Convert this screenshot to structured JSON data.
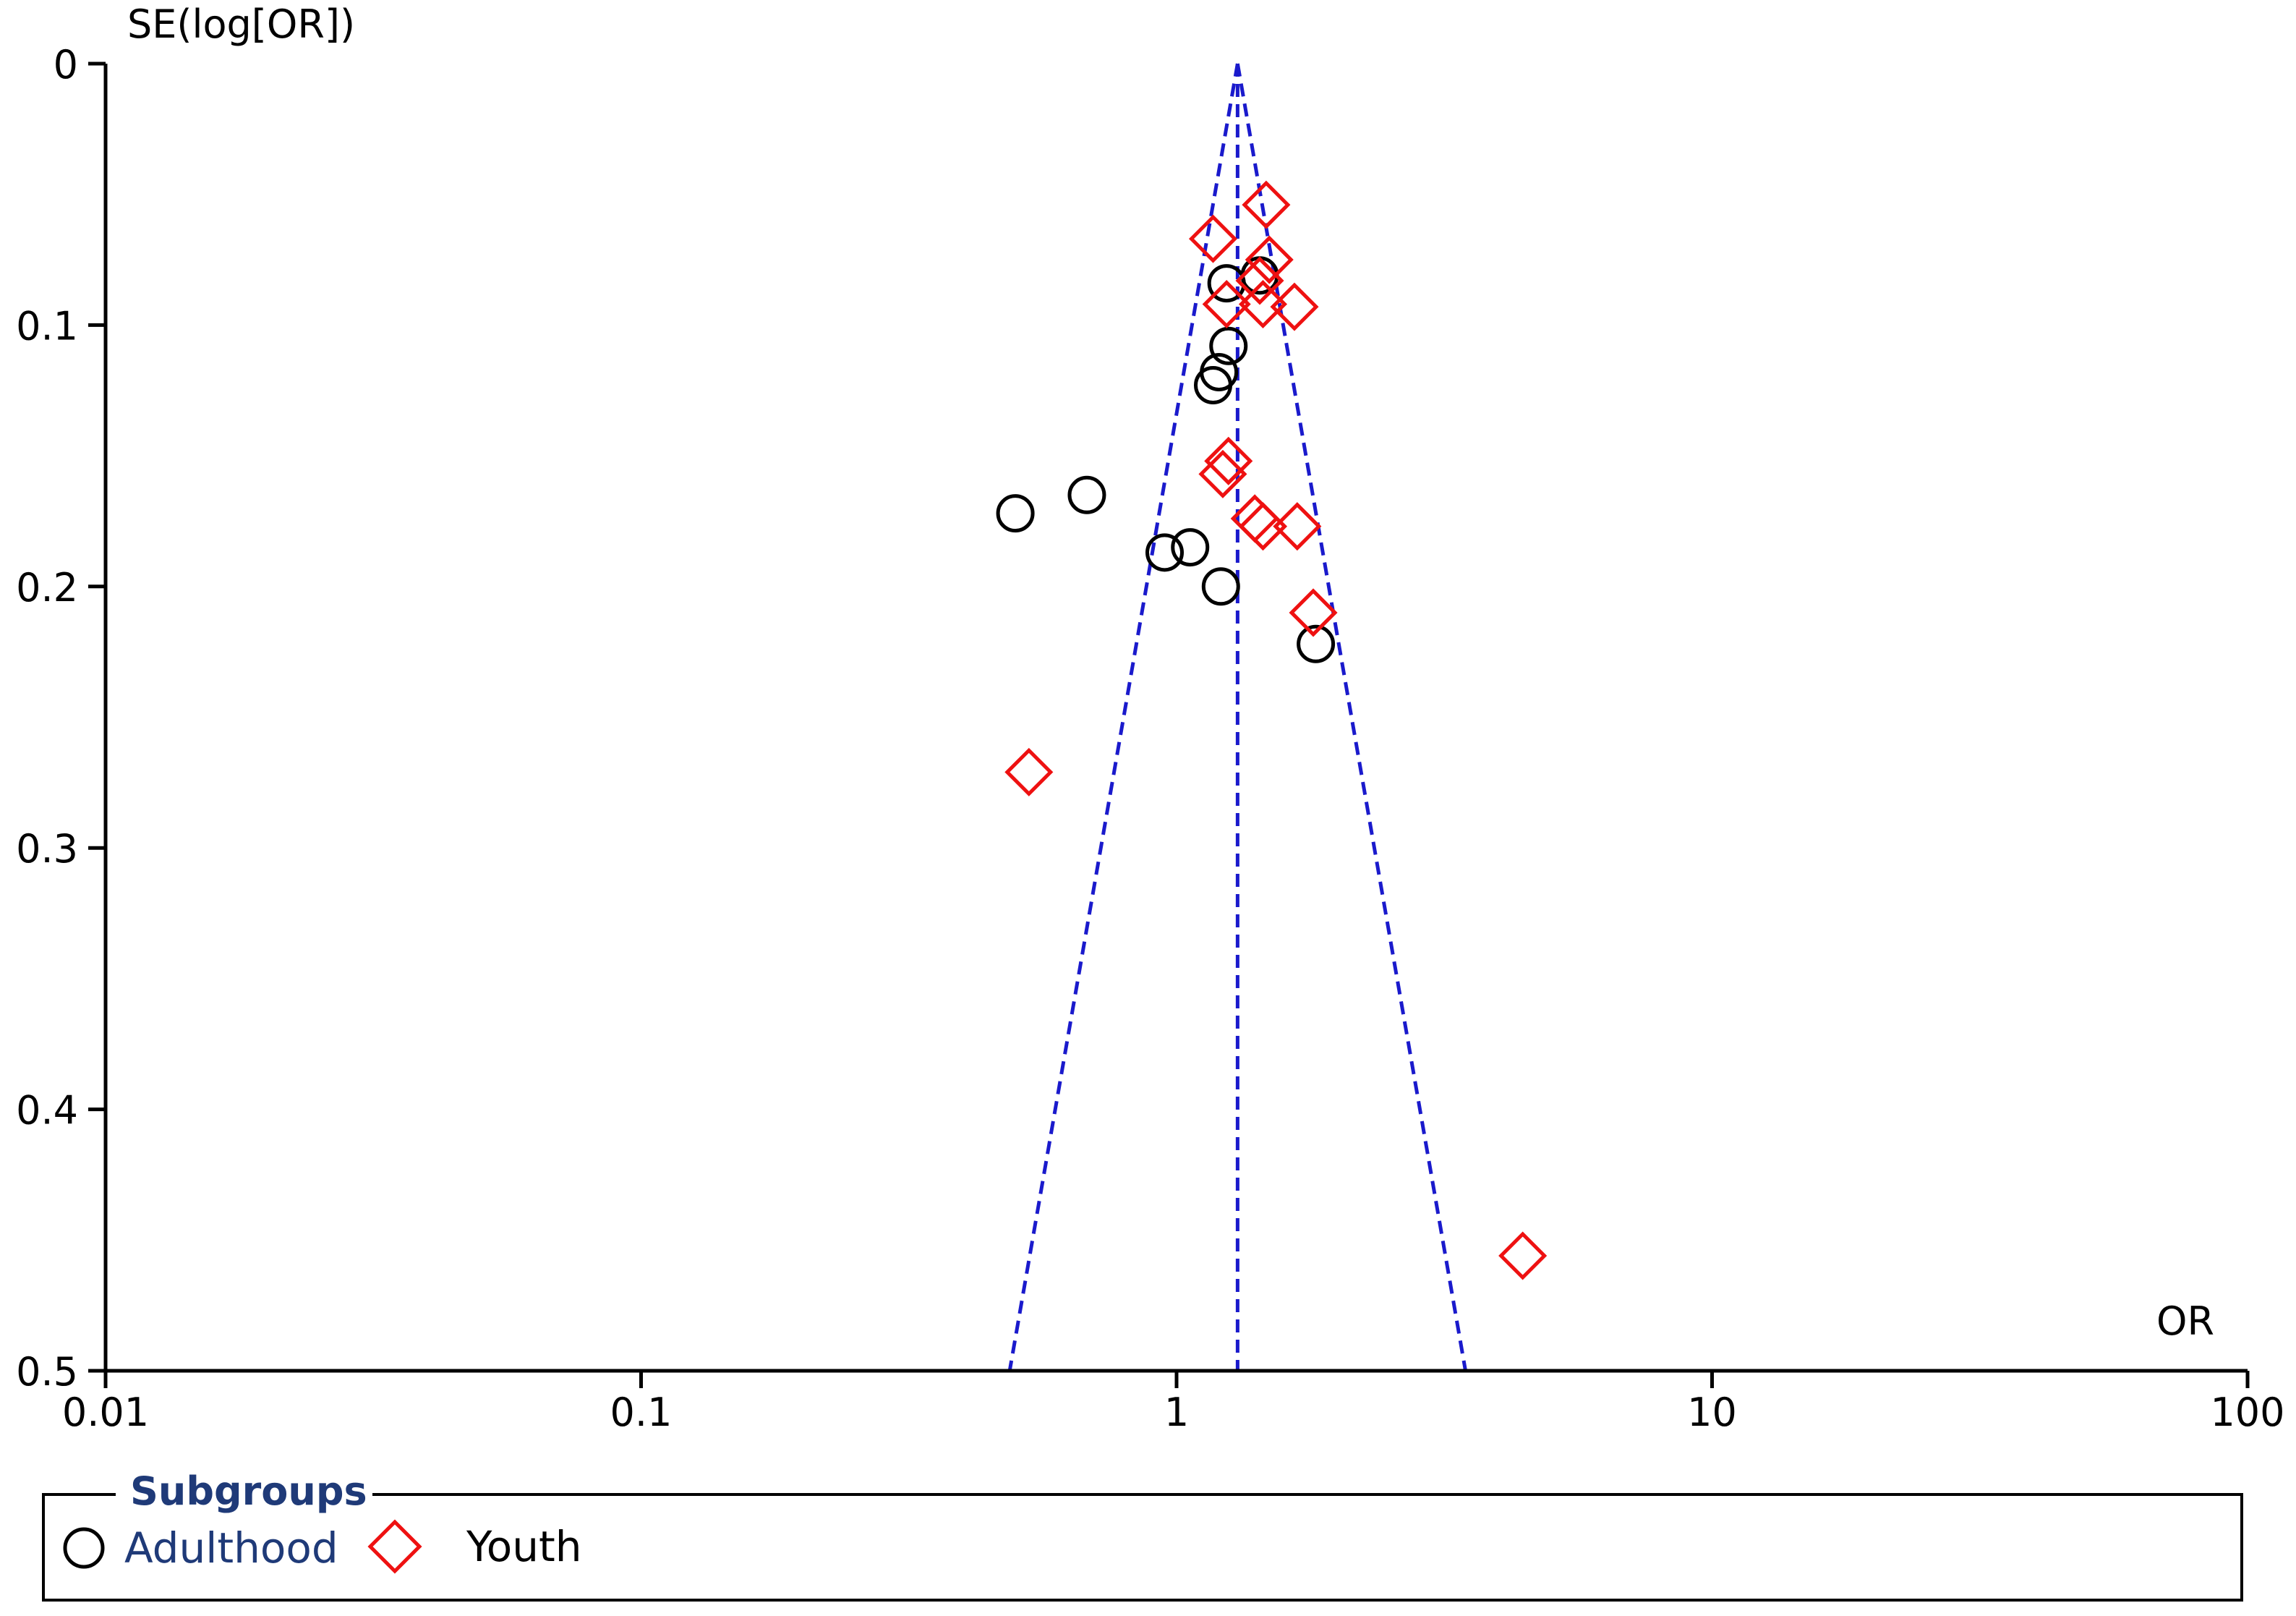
{
  "chart_data": {
    "type": "scatter",
    "title": "",
    "ylabel": "SE(log[OR])",
    "xlabel": "OR",
    "x_scale": "log",
    "xlim": [
      0.01,
      100
    ],
    "ylim": [
      0,
      0.5
    ],
    "y_inverted": true,
    "x_ticks": [
      "0.01",
      "0.1",
      "1",
      "10",
      "100"
    ],
    "x_tick_values": [
      0.01,
      0.1,
      1,
      10,
      100
    ],
    "y_ticks": [
      "0",
      "0.1",
      "0.2",
      "0.3",
      "0.4",
      "0.5"
    ],
    "y_tick_values": [
      0,
      0.1,
      0.2,
      0.3,
      0.4,
      0.5
    ],
    "grid": false,
    "pooled_or": 1.3,
    "funnel_se_max": 0.5,
    "colors": {
      "funnel": "#1a1acc",
      "adulthood": "#000000",
      "youth": "#ee1111",
      "axis": "#000000"
    },
    "legend": {
      "title": "Subgroups",
      "placement": "bottom",
      "entries": [
        "Adulthood",
        "Youth"
      ]
    },
    "series": [
      {
        "name": "Adulthood",
        "marker": "circle",
        "points": [
          {
            "or": 1.43,
            "se": 0.081
          },
          {
            "or": 1.24,
            "se": 0.084
          },
          {
            "or": 1.25,
            "se": 0.108
          },
          {
            "or": 1.2,
            "se": 0.118
          },
          {
            "or": 1.17,
            "se": 0.123
          },
          {
            "or": 0.68,
            "se": 0.165
          },
          {
            "or": 0.5,
            "se": 0.172
          },
          {
            "or": 1.06,
            "se": 0.185
          },
          {
            "or": 0.95,
            "se": 0.187
          },
          {
            "or": 1.21,
            "se": 0.2
          },
          {
            "or": 1.82,
            "se": 0.222
          }
        ]
      },
      {
        "name": "Youth",
        "marker": "diamond",
        "points": [
          {
            "or": 1.47,
            "se": 0.054
          },
          {
            "or": 1.17,
            "se": 0.067
          },
          {
            "or": 1.49,
            "se": 0.075
          },
          {
            "or": 1.43,
            "se": 0.083
          },
          {
            "or": 1.24,
            "se": 0.092
          },
          {
            "or": 1.45,
            "se": 0.092
          },
          {
            "or": 1.66,
            "se": 0.093
          },
          {
            "or": 1.25,
            "se": 0.152
          },
          {
            "or": 1.22,
            "se": 0.157
          },
          {
            "or": 1.4,
            "se": 0.174
          },
          {
            "or": 1.45,
            "se": 0.177
          },
          {
            "or": 1.68,
            "se": 0.177
          },
          {
            "or": 1.8,
            "se": 0.21
          },
          {
            "or": 0.53,
            "se": 0.271
          },
          {
            "or": 4.43,
            "se": 0.456
          }
        ]
      }
    ]
  }
}
